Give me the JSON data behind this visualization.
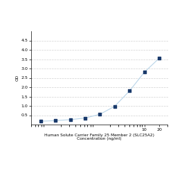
{
  "x": [
    0.078,
    0.156,
    0.313,
    0.625,
    1.25,
    2.5,
    5,
    10,
    20
  ],
  "y": [
    0.178,
    0.21,
    0.263,
    0.35,
    0.55,
    0.98,
    1.8,
    2.8,
    3.55
  ],
  "xlabel_line1": "Human Solute Carrier Family 25 Member 2 (SLC25A2)",
  "xlabel_line2": "Concentration (ng/ml)",
  "ylabel": "OD",
  "line_color": "#b8d4e8",
  "marker_color": "#1a3a6b",
  "marker_size": 3.5,
  "line_width": 0.8,
  "ylim": [
    0.0,
    5.0
  ],
  "xlim_log": [
    -1.2,
    1.35
  ],
  "yticks": [
    0.5,
    1.0,
    1.5,
    2.0,
    2.5,
    3.0,
    3.5,
    4.0,
    4.5
  ],
  "xtick_vals": [
    10,
    20
  ],
  "xtick_labels": [
    "10",
    "20"
  ],
  "grid_color": "#d0d0d0",
  "grid_style": "--",
  "bg_color": "#ffffff",
  "font_size_label": 4.2,
  "font_size_tick": 4.5,
  "figsize": [
    2.5,
    2.5
  ],
  "dpi": 100
}
